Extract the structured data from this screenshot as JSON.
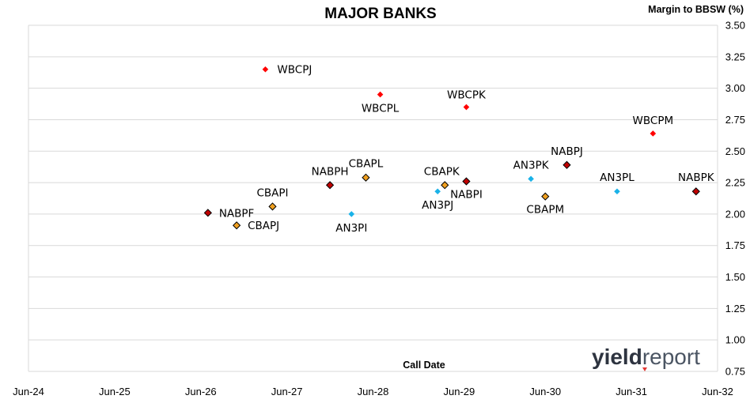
{
  "colors": {
    "wbc": "#ff0000",
    "nab": "#c00000",
    "cba": "#f0a020",
    "anz": "#1ab2e8",
    "grid": "#d9d9d9",
    "logo_dark": "#2e3440",
    "logo_light": "#4b5563"
  },
  "logo": {
    "part1": "yield",
    "part2": "report"
  },
  "chart_data": {
    "type": "scatter",
    "title": "MAJOR BANKS",
    "ylabel": "Margin to BBSW (%)",
    "xlabel": "Call Date",
    "y_axis_position": "right",
    "grid": "horizontal",
    "xlim": [
      "2024-06",
      "2032-06"
    ],
    "ylim": [
      0.75,
      3.5
    ],
    "x_ticks": [
      "Jun-24",
      "Jun-25",
      "Jun-26",
      "Jun-27",
      "Jun-28",
      "Jun-29",
      "Jun-30",
      "Jun-31",
      "Jun-32"
    ],
    "y_ticks": [
      "0.75",
      "1.00",
      "1.25",
      "1.50",
      "1.75",
      "2.00",
      "2.25",
      "2.50",
      "2.75",
      "3.00",
      "3.25",
      "3.50"
    ],
    "points": [
      {
        "label": "WBCPJ",
        "x": "2027-03",
        "y": 3.15,
        "issuer": "wbc"
      },
      {
        "label": "WBCPL",
        "x": "2028-07",
        "y": 2.95,
        "issuer": "wbc"
      },
      {
        "label": "WBCPK",
        "x": "2029-07",
        "y": 2.85,
        "issuer": "wbc"
      },
      {
        "label": "WBCPM",
        "x": "2031-09",
        "y": 2.64,
        "issuer": "wbc"
      },
      {
        "label": "NABPF",
        "x": "2026-07",
        "y": 2.01,
        "issuer": "nab"
      },
      {
        "label": "NABPH",
        "x": "2027-12",
        "y": 2.23,
        "issuer": "nab"
      },
      {
        "label": "NABPI",
        "x": "2029-07",
        "y": 2.26,
        "issuer": "nab"
      },
      {
        "label": "NABPJ",
        "x": "2030-09",
        "y": 2.39,
        "issuer": "nab"
      },
      {
        "label": "NABPK",
        "x": "2032-03",
        "y": 2.18,
        "issuer": "nab"
      },
      {
        "label": "CBAPJ",
        "x": "2026-11",
        "y": 1.91,
        "issuer": "cba"
      },
      {
        "label": "CBAPI",
        "x": "2027-04",
        "y": 2.06,
        "issuer": "cba"
      },
      {
        "label": "CBAPL",
        "x": "2028-05",
        "y": 2.29,
        "issuer": "cba"
      },
      {
        "label": "CBAPK",
        "x": "2029-04",
        "y": 2.23,
        "issuer": "cba"
      },
      {
        "label": "CBAPM",
        "x": "2030-06",
        "y": 2.14,
        "issuer": "cba"
      },
      {
        "label": "AN3PI",
        "x": "2028-03",
        "y": 2.0,
        "issuer": "anz"
      },
      {
        "label": "AN3PJ",
        "x": "2029-03",
        "y": 2.18,
        "issuer": "anz"
      },
      {
        "label": "AN3PK",
        "x": "2030-04",
        "y": 2.28,
        "issuer": "anz"
      },
      {
        "label": "AN3PL",
        "x": "2031-04",
        "y": 2.18,
        "issuer": "anz"
      }
    ]
  }
}
